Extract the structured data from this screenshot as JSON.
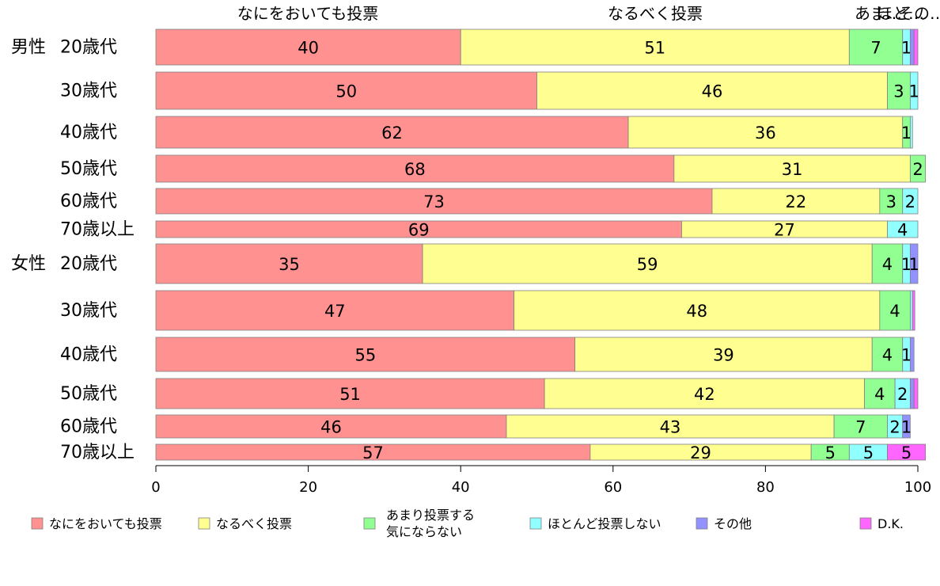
{
  "chart_data": {
    "type": "bar",
    "orientation": "horizontal",
    "stacked": true,
    "xlim": [
      0,
      100
    ],
    "x_ticks": [
      "0",
      "20",
      "40",
      "60",
      "80",
      "100"
    ],
    "grid": false,
    "legend_position": "bottom",
    "top_labels": [
      "なにをおいても投票",
      "なるべく投票",
      "あま…",
      "ほと…",
      "その…"
    ],
    "groups": [
      {
        "label": "男性",
        "first_row": 0
      },
      {
        "label": "女性",
        "first_row": 6
      }
    ],
    "categories": [
      "20歳代",
      "30歳代",
      "40歳代",
      "50歳代",
      "60歳代",
      "70歳以上",
      "20歳代",
      "30歳代",
      "40歳代",
      "50歳代",
      "60歳代",
      "70歳以上"
    ],
    "series": [
      {
        "name": "なにをおいても投票",
        "color": "#ff9191",
        "values": [
          40,
          50,
          62,
          68,
          73,
          69,
          35,
          47,
          55,
          51,
          46,
          57
        ]
      },
      {
        "name": "なるべく投票",
        "color": "#ffff91",
        "values": [
          51,
          46,
          36,
          31,
          22,
          27,
          59,
          48,
          39,
          42,
          43,
          29
        ]
      },
      {
        "name": "あまり投票する気にならない",
        "color": "#91ff91",
        "values": [
          7,
          3,
          1,
          2,
          3,
          0,
          4,
          4,
          4,
          4,
          7,
          5
        ]
      },
      {
        "name": "ほとんど投票しない",
        "color": "#91ffff",
        "values": [
          1,
          1,
          0.3,
          0,
          2,
          4,
          1,
          0.3,
          1,
          2,
          2,
          5
        ]
      },
      {
        "name": "その他",
        "color": "#9191ff",
        "values": [
          0.5,
          0,
          0,
          0,
          0,
          0,
          1,
          0,
          0.5,
          0.5,
          1,
          0
        ]
      },
      {
        "name": "D.K.",
        "color": "#ff66ff",
        "values": [
          0.5,
          0,
          0,
          0,
          0,
          0,
          0,
          0.3,
          0,
          0.5,
          0,
          5
        ]
      }
    ],
    "data_labels": [
      [
        "40",
        "51",
        "7",
        "1",
        "",
        ""
      ],
      [
        "50",
        "46",
        "3",
        "1",
        "",
        ""
      ],
      [
        "62",
        "36",
        "1",
        "",
        "",
        ""
      ],
      [
        "68",
        "31",
        "2",
        "",
        "",
        ""
      ],
      [
        "73",
        "22",
        "3",
        "2",
        "",
        ""
      ],
      [
        "69",
        "27",
        "",
        "4",
        "",
        ""
      ],
      [
        "35",
        "59",
        "4",
        "1",
        "1",
        ""
      ],
      [
        "47",
        "48",
        "4",
        "",
        "",
        ""
      ],
      [
        "55",
        "39",
        "4",
        "1",
        "",
        ""
      ],
      [
        "51",
        "42",
        "4",
        "2",
        "",
        ""
      ],
      [
        "46",
        "43",
        "7",
        "2",
        "1",
        ""
      ],
      [
        "57",
        "29",
        "5",
        "5",
        "",
        "5"
      ]
    ],
    "legend": [
      {
        "lines": [
          "なにをおいても投票"
        ],
        "color": "#ff9191"
      },
      {
        "lines": [
          "なるべく投票"
        ],
        "color": "#ffff91"
      },
      {
        "lines": [
          "あまり投票する",
          "気にならない"
        ],
        "color": "#91ff91"
      },
      {
        "lines": [
          "ほとんど投票しない"
        ],
        "color": "#91ffff"
      },
      {
        "lines": [
          "その他"
        ],
        "color": "#9191ff"
      },
      {
        "lines": [
          "D.K."
        ],
        "color": "#ff66ff"
      }
    ]
  }
}
